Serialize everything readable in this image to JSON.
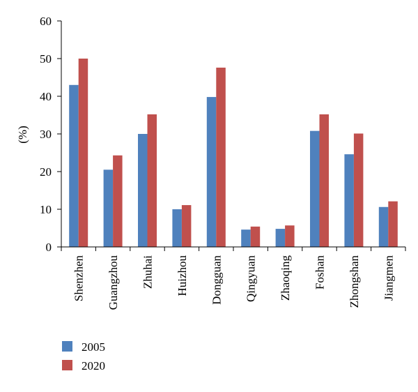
{
  "chart_data": {
    "type": "bar",
    "title": "",
    "xlabel": "",
    "ylabel": "(%)",
    "ylim": [
      0,
      60
    ],
    "yticks": [
      0,
      10,
      20,
      30,
      40,
      50,
      60
    ],
    "grid": false,
    "legend_position": "bottom-left",
    "categories": [
      "Shenzhen",
      "Guangzhou",
      "Zhuhai",
      "Huizhou",
      "Dongguan",
      "Qingyuan",
      "Zhaoqing",
      "Foshan",
      "Zhongshan",
      "Jiangmen"
    ],
    "series": [
      {
        "name": "2005",
        "color": "#4f81bd",
        "values": [
          43,
          20.5,
          30,
          10,
          39.8,
          4.6,
          4.8,
          30.8,
          24.6,
          10.6
        ]
      },
      {
        "name": "2020",
        "color": "#c0504d",
        "values": [
          50,
          24.3,
          35.2,
          11.1,
          47.6,
          5.4,
          5.7,
          35.2,
          30.1,
          12.1
        ]
      }
    ]
  }
}
